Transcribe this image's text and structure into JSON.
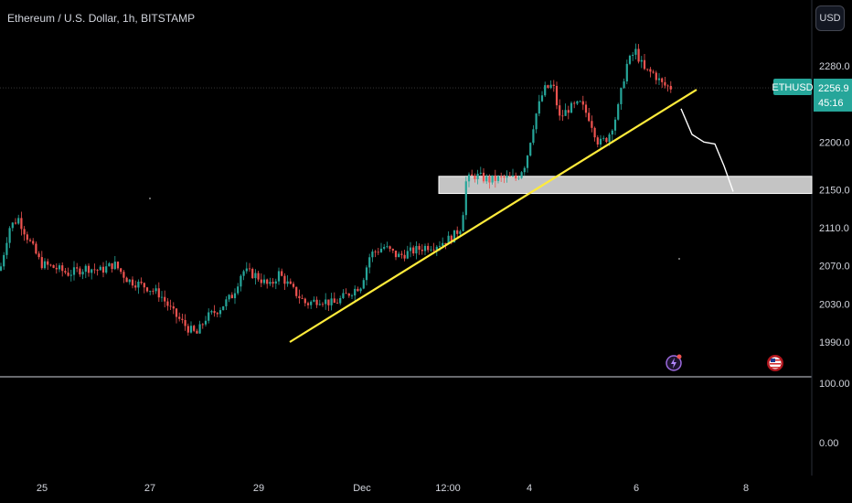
{
  "header": {
    "title": "Ethereum / U.S. Dollar, 1h, BITSTAMP",
    "currency_button": "USD"
  },
  "price_tag": {
    "symbol": "ETHUSD",
    "price": "2256.9",
    "countdown": "45:16"
  },
  "colors": {
    "up": "#26a69a",
    "down": "#ef5350",
    "trendline": "#ffeb3b",
    "zone": "#d9d9d9",
    "tag": "#26a69a",
    "projection": "#ffffff"
  },
  "chart_data": {
    "type": "candlestick",
    "symbol": "ETHUSD",
    "timeframe": "1h",
    "exchange": "BITSTAMP",
    "last_price": 2256.9,
    "y_ticks": [
      "2280.0",
      "2200.0",
      "2150.0",
      "2110.0",
      "2070.0",
      "2030.0",
      "1990.0"
    ],
    "x_ticks": [
      "25",
      "27",
      "29",
      "Dec",
      "12:00",
      "4",
      "6",
      "8"
    ],
    "indicator_pane_ticks": [
      "100.00",
      "0.00"
    ],
    "price_path": [
      [
        0,
        2065
      ],
      [
        10,
        2110
      ],
      [
        20,
        2120
      ],
      [
        30,
        2100
      ],
      [
        45,
        2072
      ],
      [
        60,
        2068
      ],
      [
        75,
        2062
      ],
      [
        95,
        2068
      ],
      [
        110,
        2065
      ],
      [
        125,
        2072
      ],
      [
        140,
        2055
      ],
      [
        160,
        2048
      ],
      [
        175,
        2040
      ],
      [
        190,
        2020
      ],
      [
        205,
        2005
      ],
      [
        215,
        1998
      ],
      [
        225,
        2015
      ],
      [
        240,
        2025
      ],
      [
        255,
        2040
      ],
      [
        265,
        2065
      ],
      [
        280,
        2060
      ],
      [
        295,
        2048
      ],
      [
        305,
        2062
      ],
      [
        320,
        2045
      ],
      [
        335,
        2030
      ],
      [
        350,
        2035
      ],
      [
        365,
        2030
      ],
      [
        380,
        2040
      ],
      [
        395,
        2050
      ],
      [
        405,
        2082
      ],
      [
        420,
        2090
      ],
      [
        435,
        2080
      ],
      [
        450,
        2085
      ],
      [
        465,
        2090
      ],
      [
        480,
        2093
      ],
      [
        495,
        2100
      ],
      [
        505,
        2112
      ],
      [
        510,
        2160
      ],
      [
        520,
        2165
      ],
      [
        535,
        2160
      ],
      [
        550,
        2162
      ],
      [
        565,
        2162
      ],
      [
        575,
        2178
      ],
      [
        585,
        2225
      ],
      [
        595,
        2255
      ],
      [
        605,
        2260
      ],
      [
        612,
        2225
      ],
      [
        622,
        2235
      ],
      [
        635,
        2240
      ],
      [
        645,
        2225
      ],
      [
        655,
        2198
      ],
      [
        665,
        2205
      ],
      [
        675,
        2230
      ],
      [
        685,
        2280
      ],
      [
        695,
        2296
      ],
      [
        705,
        2275
      ],
      [
        715,
        2272
      ],
      [
        725,
        2260
      ],
      [
        735,
        2256.9
      ]
    ],
    "trendline": {
      "start": [
        317,
        1990
      ],
      "end": [
        762,
        2255
      ]
    },
    "zone": {
      "x_from": 480,
      "x_to": 888,
      "low": 2146,
      "high": 2164
    },
    "projection": [
      [
        745,
        2235
      ],
      [
        757,
        2208
      ],
      [
        770,
        2200
      ],
      [
        782,
        2198
      ],
      [
        792,
        2175
      ],
      [
        802,
        2148
      ]
    ],
    "events": [
      {
        "x": 737,
        "icon": "lightning-icon"
      },
      {
        "x": 848,
        "icon": "us-flag-icon"
      }
    ]
  }
}
